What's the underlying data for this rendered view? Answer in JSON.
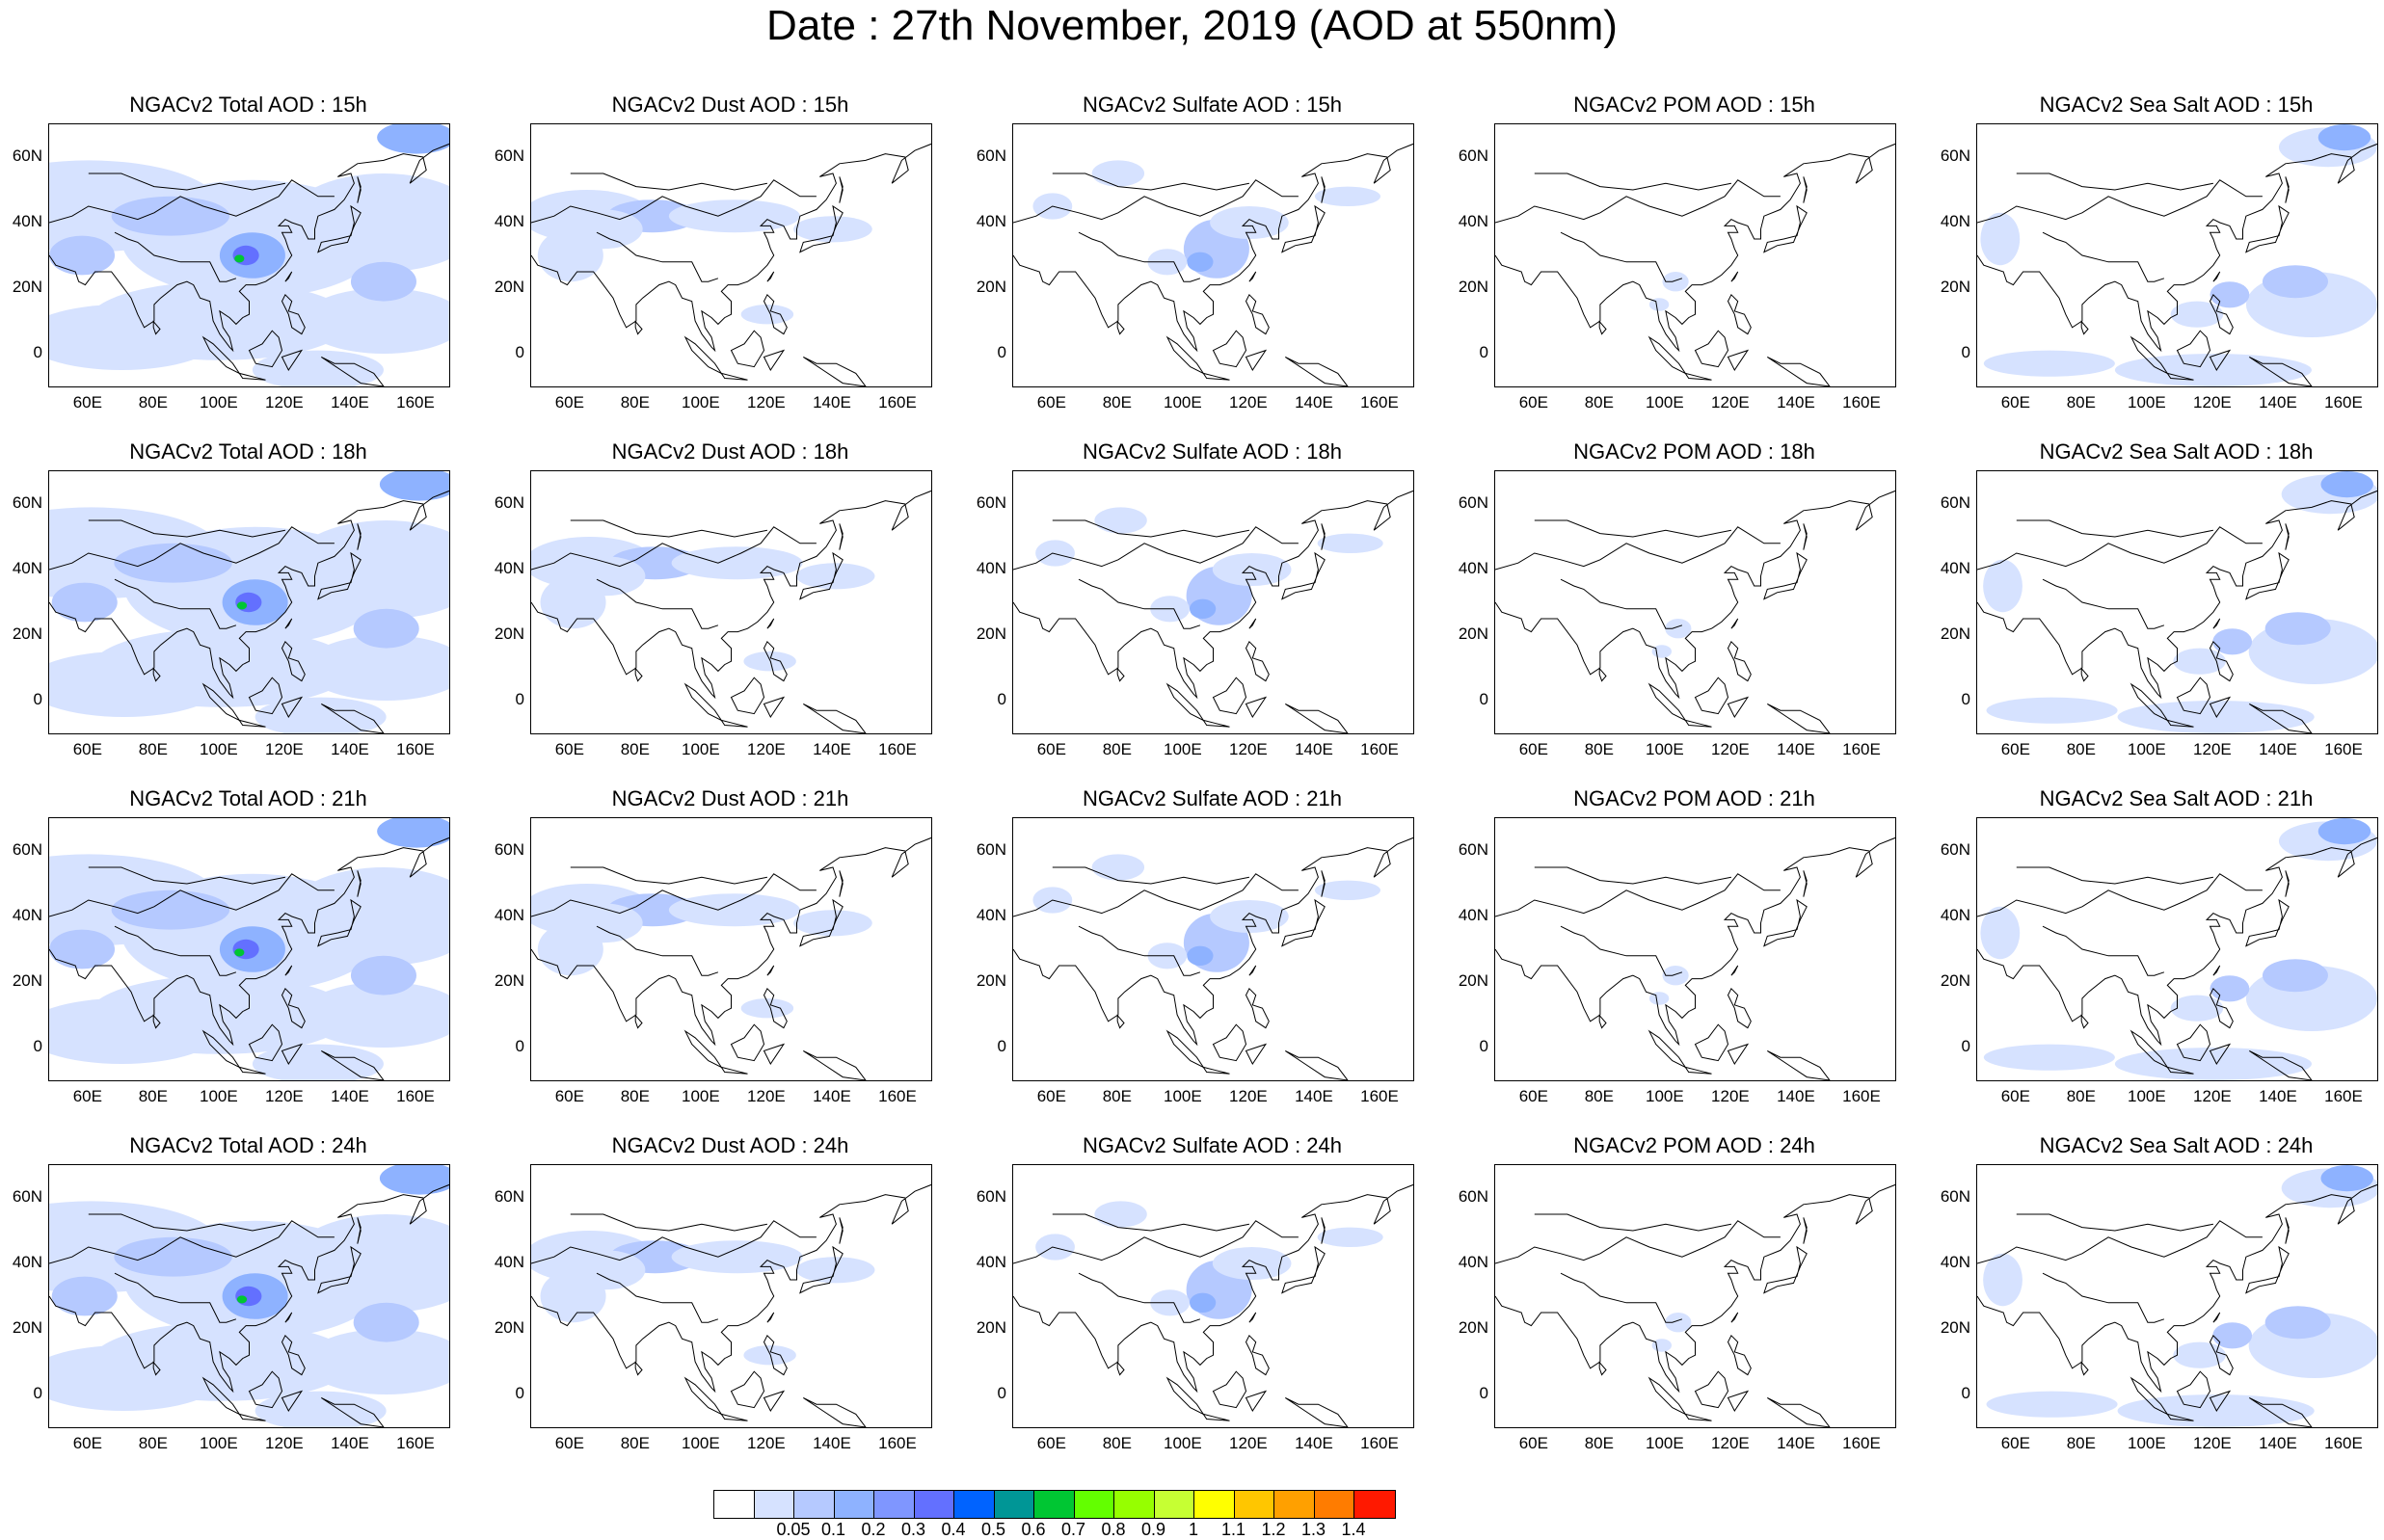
{
  "title": "Date : 27th November, 2019 (AOD at 550nm)",
  "panels": [
    [
      "NGACv2 Total AOD : 15h",
      "NGACv2 Dust AOD : 15h",
      "NGACv2 Sulfate AOD : 15h",
      "NGACv2 POM AOD : 15h",
      "NGACv2 Sea Salt AOD : 15h"
    ],
    [
      "NGACv2 Total AOD : 18h",
      "NGACv2 Dust AOD : 18h",
      "NGACv2 Sulfate AOD : 18h",
      "NGACv2 POM AOD : 18h",
      "NGACv2 Sea Salt AOD : 18h"
    ],
    [
      "NGACv2 Total AOD : 21h",
      "NGACv2 Dust AOD : 21h",
      "NGACv2 Sulfate AOD : 21h",
      "NGACv2 POM AOD : 21h",
      "NGACv2 Sea Salt AOD : 21h"
    ],
    [
      "NGACv2 Total AOD : 24h",
      "NGACv2 Dust AOD : 24h",
      "NGACv2 Sulfate AOD : 24h",
      "NGACv2 POM AOD : 24h",
      "NGACv2 Sea Salt  AOD : 24h"
    ]
  ],
  "y_ticks": [
    "60N",
    "40N",
    "20N",
    "0"
  ],
  "x_ticks": [
    "60E",
    "80E",
    "100E",
    "120E",
    "140E",
    "160E"
  ],
  "colorbar": {
    "colors": [
      "#ffffff",
      "#d6e2ff",
      "#b5c9ff",
      "#8eb2ff",
      "#7f96ff",
      "#6370ff",
      "#0063ff",
      "#009696",
      "#00c633",
      "#63ff00",
      "#96ff00",
      "#c6ff33",
      "#ffff00",
      "#ffc600",
      "#ffa000",
      "#ff7c00",
      "#ff1900"
    ],
    "labels": [
      "0.05",
      "0.1",
      "0.2",
      "0.3",
      "0.4",
      "0.5",
      "0.6",
      "0.7",
      "0.8",
      "0.9",
      "1",
      "1.1",
      "1.2",
      "1.3",
      "1.4"
    ]
  }
}
